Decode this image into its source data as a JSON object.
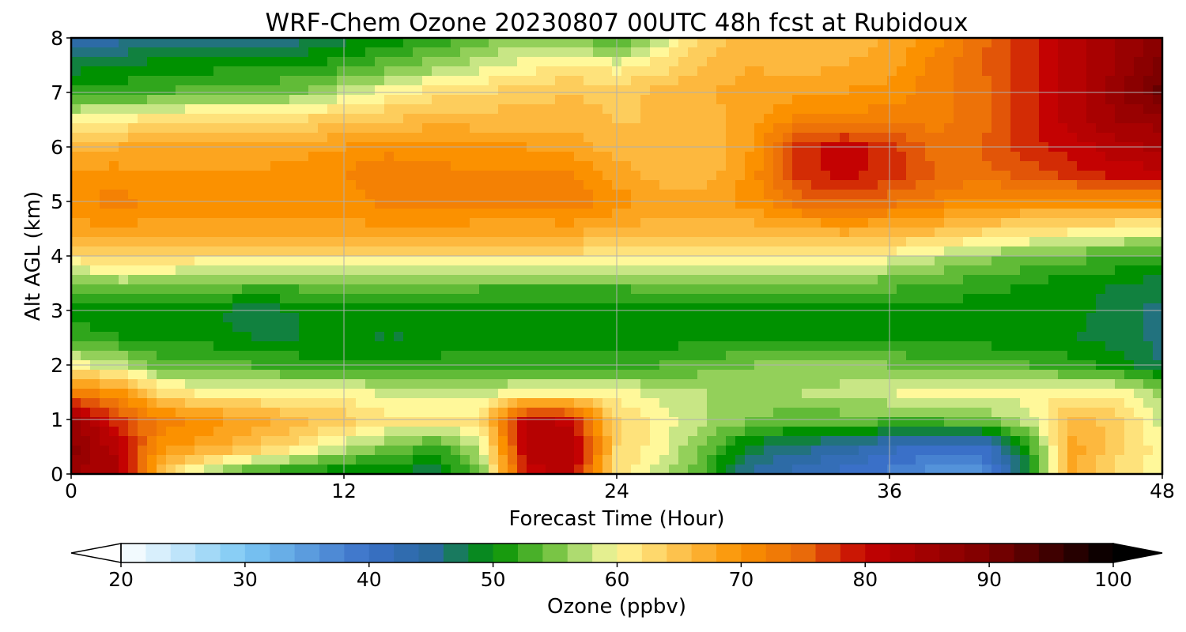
{
  "chart_data": {
    "type": "heatmap",
    "title": "WRF-Chem Ozone  20230807 00UTC 48h fcst at Rubidoux",
    "xlabel": "Forecast Time (Hour)",
    "ylabel": "Alt AGL (km)",
    "xlim": [
      0,
      48
    ],
    "ylim": [
      0,
      8
    ],
    "xticks": [
      0,
      12,
      24,
      36,
      48
    ],
    "yticks": [
      0,
      1,
      2,
      3,
      4,
      5,
      6,
      7,
      8
    ],
    "grid": true,
    "x_hours": [
      0,
      2,
      4,
      6,
      8,
      10,
      12,
      14,
      16,
      18,
      20,
      22,
      24,
      26,
      28,
      30,
      32,
      34,
      36,
      38,
      40,
      42,
      44,
      46,
      48
    ],
    "y_km": [
      0,
      0.5,
      1,
      1.5,
      2,
      2.5,
      3,
      3.5,
      4,
      4.5,
      5,
      5.5,
      6,
      6.5,
      7,
      7.5,
      8
    ],
    "values": [
      [
        85,
        84,
        64,
        56,
        52,
        50,
        49,
        48,
        48,
        54,
        80,
        82,
        62,
        58,
        52,
        44,
        42,
        40,
        38,
        36,
        35,
        48,
        68,
        62,
        60
      ],
      [
        88,
        82,
        70,
        68,
        65,
        62,
        58,
        55,
        52,
        58,
        82,
        83,
        63,
        60,
        54,
        48,
        46,
        44,
        42,
        40,
        40,
        50,
        68,
        64,
        60
      ],
      [
        86,
        78,
        72,
        70,
        68,
        66,
        64,
        62,
        62,
        62,
        82,
        80,
        63,
        60,
        57,
        55,
        54,
        54,
        54,
        54,
        55,
        58,
        66,
        64,
        58
      ],
      [
        72,
        70,
        62,
        60,
        60,
        60,
        60,
        58,
        58,
        58,
        60,
        60,
        60,
        58,
        57,
        56,
        57,
        58,
        59,
        60,
        60,
        60,
        60,
        60,
        56
      ],
      [
        60,
        58,
        54,
        54,
        53,
        52,
        52,
        52,
        52,
        52,
        52,
        52,
        52,
        53,
        54,
        55,
        55,
        55,
        55,
        54,
        54,
        53,
        52,
        50,
        47
      ],
      [
        52,
        51,
        50,
        50,
        49,
        49,
        49,
        49,
        49,
        50,
        50,
        50,
        50,
        50,
        50,
        51,
        51,
        50,
        50,
        50,
        50,
        49,
        49,
        48,
        46
      ],
      [
        50,
        50,
        50,
        49,
        48,
        49,
        49,
        49,
        49,
        49,
        49,
        49,
        49,
        50,
        50,
        50,
        50,
        50,
        50,
        50,
        50,
        50,
        50,
        48,
        46
      ],
      [
        55,
        56,
        56,
        55,
        54,
        54,
        55,
        55,
        55,
        54,
        54,
        54,
        54,
        54,
        54,
        55,
        55,
        55,
        54,
        53,
        52,
        51,
        50,
        49,
        48
      ],
      [
        62,
        64,
        63,
        62,
        62,
        62,
        62,
        62,
        62,
        62,
        62,
        62,
        62,
        62,
        62,
        62,
        62,
        61,
        60,
        58,
        56,
        55,
        54,
        53,
        52
      ],
      [
        68,
        69,
        68,
        68,
        68,
        68,
        68,
        69,
        69,
        68,
        68,
        68,
        67,
        66,
        66,
        66,
        67,
        68,
        67,
        66,
        64,
        63,
        62,
        61,
        60
      ],
      [
        70,
        72,
        70,
        70,
        70,
        70,
        70,
        72,
        72,
        72,
        72,
        73,
        70,
        68,
        68,
        70,
        74,
        75,
        74,
        72,
        70,
        70,
        70,
        70,
        70
      ],
      [
        69,
        70,
        69,
        69,
        69,
        70,
        71,
        73,
        72,
        71,
        71,
        71,
        68,
        66,
        66,
        70,
        78,
        80,
        78,
        75,
        74,
        76,
        78,
        80,
        80
      ],
      [
        66,
        67,
        67,
        67,
        68,
        68,
        69,
        70,
        70,
        69,
        69,
        68,
        66,
        65,
        65,
        69,
        78,
        80,
        78,
        74,
        75,
        78,
        80,
        82,
        84
      ],
      [
        60,
        61,
        62,
        63,
        63,
        63,
        64,
        65,
        66,
        66,
        66,
        66,
        65,
        65,
        66,
        68,
        72,
        72,
        72,
        72,
        74,
        78,
        82,
        85,
        86
      ],
      [
        52,
        52,
        53,
        54,
        54,
        55,
        58,
        60,
        62,
        63,
        64,
        65,
        64,
        66,
        67,
        68,
        68,
        69,
        70,
        72,
        74,
        78,
        82,
        86,
        92
      ],
      [
        48,
        49,
        50,
        50,
        51,
        51,
        52,
        54,
        56,
        58,
        60,
        61,
        60,
        62,
        65,
        67,
        66,
        67,
        68,
        72,
        75,
        78,
        82,
        85,
        90
      ],
      [
        42,
        44,
        46,
        46,
        45,
        46,
        48,
        50,
        51,
        54,
        56,
        55,
        52,
        58,
        64,
        66,
        65,
        66,
        67,
        70,
        74,
        78,
        82,
        85,
        88
      ]
    ],
    "colorbar": {
      "label": "Ozone  (ppbv)",
      "min": 20,
      "max": 100,
      "ticks": [
        20,
        30,
        40,
        50,
        60,
        70,
        80,
        90,
        100
      ],
      "extend": "both",
      "color_stops": [
        {
          "v": 20,
          "c": "#ffffff"
        },
        {
          "v": 30,
          "c": "#7cc8f4"
        },
        {
          "v": 40,
          "c": "#3a70c8"
        },
        {
          "v": 45,
          "c": "#2a6a9e"
        },
        {
          "v": 50,
          "c": "#009100"
        },
        {
          "v": 55,
          "c": "#79c545"
        },
        {
          "v": 58,
          "c": "#c8e685"
        },
        {
          "v": 60,
          "c": "#fff89a"
        },
        {
          "v": 65,
          "c": "#fdc24d"
        },
        {
          "v": 70,
          "c": "#fb9100"
        },
        {
          "v": 75,
          "c": "#e96a0a"
        },
        {
          "v": 80,
          "c": "#c40202"
        },
        {
          "v": 90,
          "c": "#7d0000"
        },
        {
          "v": 100,
          "c": "#000000"
        }
      ]
    }
  }
}
